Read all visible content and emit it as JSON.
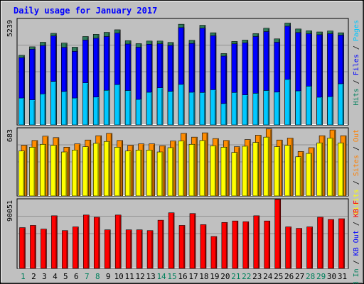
{
  "chart_data": {
    "type": "bar",
    "title": "Daily usage for January 2017",
    "categories": [
      "1",
      "2",
      "3",
      "4",
      "5",
      "6",
      "7",
      "8",
      "9",
      "10",
      "11",
      "12",
      "13",
      "14",
      "15",
      "16",
      "17",
      "18",
      "19",
      "20",
      "21",
      "22",
      "23",
      "24",
      "25",
      "26",
      "27",
      "28",
      "29",
      "30",
      "31"
    ],
    "weekend_categories": [
      "1",
      "7",
      "8",
      "14",
      "15",
      "21",
      "22",
      "28",
      "29"
    ],
    "panels": [
      {
        "id": "top",
        "max_label": "5239",
        "ymax": 5239,
        "side_labels": [
          {
            "text": "Hits",
            "color": "#00805c"
          },
          {
            "text": " / ",
            "color": "#000000"
          },
          {
            "text": "Files",
            "color": "#0000ff"
          },
          {
            "text": " / ",
            "color": "#000000"
          },
          {
            "text": "Pages",
            "color": "#00c8ff"
          }
        ],
        "series": [
          {
            "name": "Hits",
            "color": "#2e7d5a",
            "values": [
              3520,
              3950,
              4180,
              4630,
              4140,
              3930,
              4470,
              4580,
              4680,
              4810,
              4260,
              4110,
              4240,
              4240,
              4170,
              5090,
              4280,
              5040,
              4660,
              3610,
              4220,
              4290,
              4620,
              4890,
              4350,
              5150,
              4850,
              4760,
              4700,
              4750,
              4660
            ]
          },
          {
            "name": "Files",
            "color": "#0000ff",
            "values": [
              3400,
              3830,
              4010,
              4500,
              3920,
              3720,
              4290,
              4380,
              4470,
              4640,
              4090,
              3930,
              4080,
              4100,
              4020,
              4920,
              4120,
              4890,
              4510,
              3480,
              4100,
              4150,
              4470,
              4720,
              4180,
              4990,
              4670,
              4610,
              4560,
              4610,
              4540
            ]
          },
          {
            "name": "Pages",
            "color": "#00c8ff",
            "values": [
              1360,
              1270,
              1570,
              2200,
              1690,
              1360,
              2130,
              1410,
              1750,
              2040,
              1740,
              1290,
              1650,
              1880,
              1700,
              2050,
              1650,
              1640,
              1780,
              1080,
              1640,
              1520,
              1600,
              1740,
              1660,
              2300,
              1720,
              1960,
              1400,
              1430,
              2080
            ]
          }
        ]
      },
      {
        "id": "middle",
        "max_label": "683",
        "ymax": 683,
        "side_labels": [
          {
            "text": "Visits",
            "color": "#ffff00"
          },
          {
            "text": " / ",
            "color": "#000000"
          },
          {
            "text": "Sites",
            "color": "#ff8000"
          },
          {
            "text": " / ",
            "color": "#000000"
          },
          {
            "text": "Out",
            "color": "#ff8000"
          }
        ],
        "series": [
          {
            "name": "Sites",
            "color": "#ff8c00",
            "values": [
              530,
              580,
              625,
              610,
              510,
              545,
              585,
              630,
              655,
              580,
              530,
              545,
              545,
              525,
              575,
              655,
              615,
              660,
              600,
              580,
              515,
              590,
              635,
              700,
              585,
              605,
              465,
              505,
              630,
              690,
              630
            ]
          },
          {
            "name": "Visits",
            "color": "#ffff00",
            "values": [
              470,
              510,
              540,
              530,
              460,
              480,
              515,
              550,
              570,
              510,
              470,
              480,
              480,
              460,
              505,
              575,
              540,
              580,
              525,
              510,
              455,
              520,
              560,
              615,
              515,
              530,
              410,
              445,
              555,
              605,
              555
            ]
          }
        ]
      },
      {
        "id": "bottom",
        "max_label": "90051",
        "ymax": 90051,
        "side_labels": [
          {
            "text": "KB In",
            "color": "#00805c"
          },
          {
            "text": " / ",
            "color": "#000000"
          },
          {
            "text": "KB Out",
            "color": "#0000ff"
          },
          {
            "text": " / ",
            "color": "#000000"
          },
          {
            "text": "KB F",
            "color": "#ff0000"
          }
        ],
        "series": [
          {
            "name": "KB F",
            "color": "#ff0000",
            "values": [
              55000,
              58000,
              53000,
              71000,
              51000,
              56000,
              72000,
              69000,
              52000,
              72000,
              52000,
              52000,
              51000,
              65000,
              75000,
              58000,
              74000,
              59000,
              43000,
              62000,
              64000,
              63000,
              71000,
              64000,
              93000,
              56000,
              54000,
              56000,
              69000,
              66000,
              67000
            ]
          }
        ]
      }
    ]
  }
}
